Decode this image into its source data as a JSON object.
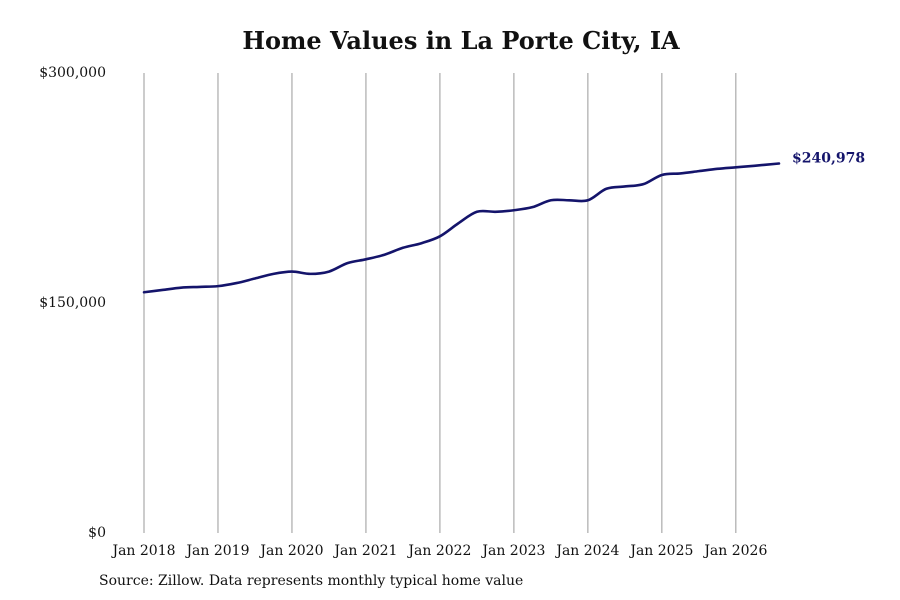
{
  "chart_data": {
    "type": "line",
    "title": "Home Values in La Porte City, IA",
    "source": "Source: Zillow. Data represents monthly typical home value",
    "xlabel": "",
    "ylabel": "",
    "ylim": [
      0,
      300000
    ],
    "xlim": [
      "2018-01",
      "2026-08"
    ],
    "y_ticks": [
      {
        "value": 0,
        "label": "$0"
      },
      {
        "value": 150000,
        "label": "$150,000"
      },
      {
        "value": 300000,
        "label": "$300,000"
      }
    ],
    "x_ticks": [
      {
        "value": "2018-01",
        "label": "Jan 2018"
      },
      {
        "value": "2019-01",
        "label": "Jan 2019"
      },
      {
        "value": "2020-01",
        "label": "Jan 2020"
      },
      {
        "value": "2021-01",
        "label": "Jan 2021"
      },
      {
        "value": "2022-01",
        "label": "Jan 2022"
      },
      {
        "value": "2023-01",
        "label": "Jan 2023"
      },
      {
        "value": "2024-01",
        "label": "Jan 2024"
      },
      {
        "value": "2025-01",
        "label": "Jan 2025"
      },
      {
        "value": "2026-01",
        "label": "Jan 2026"
      }
    ],
    "grid": {
      "vertical": true,
      "horizontal": false
    },
    "line_color": "#14146b",
    "grid_color": "#999999",
    "end_label": "$240,978",
    "series": [
      {
        "points": [
          {
            "x": "2018-01",
            "y": 157000
          },
          {
            "x": "2018-04",
            "y": 158500
          },
          {
            "x": "2018-07",
            "y": 160000
          },
          {
            "x": "2018-10",
            "y": 160500
          },
          {
            "x": "2019-01",
            "y": 161000
          },
          {
            "x": "2019-04",
            "y": 163000
          },
          {
            "x": "2019-07",
            "y": 166000
          },
          {
            "x": "2019-10",
            "y": 169000
          },
          {
            "x": "2020-01",
            "y": 170500
          },
          {
            "x": "2020-04",
            "y": 169000
          },
          {
            "x": "2020-07",
            "y": 170500
          },
          {
            "x": "2020-10",
            "y": 176000
          },
          {
            "x": "2021-01",
            "y": 178500
          },
          {
            "x": "2021-04",
            "y": 181500
          },
          {
            "x": "2021-07",
            "y": 186000
          },
          {
            "x": "2021-10",
            "y": 189000
          },
          {
            "x": "2022-01",
            "y": 193500
          },
          {
            "x": "2022-04",
            "y": 202000
          },
          {
            "x": "2022-07",
            "y": 209500
          },
          {
            "x": "2022-10",
            "y": 209500
          },
          {
            "x": "2023-01",
            "y": 210500
          },
          {
            "x": "2023-04",
            "y": 212500
          },
          {
            "x": "2023-07",
            "y": 217000
          },
          {
            "x": "2023-10",
            "y": 217000
          },
          {
            "x": "2024-01",
            "y": 217000
          },
          {
            "x": "2024-04",
            "y": 224500
          },
          {
            "x": "2024-07",
            "y": 226000
          },
          {
            "x": "2024-10",
            "y": 227500
          },
          {
            "x": "2025-01",
            "y": 233500
          },
          {
            "x": "2025-04",
            "y": 234500
          },
          {
            "x": "2025-07",
            "y": 236000
          },
          {
            "x": "2025-10",
            "y": 237500
          },
          {
            "x": "2026-01",
            "y": 238500
          },
          {
            "x": "2026-04",
            "y": 239500
          },
          {
            "x": "2026-08",
            "y": 240978
          }
        ]
      }
    ]
  }
}
